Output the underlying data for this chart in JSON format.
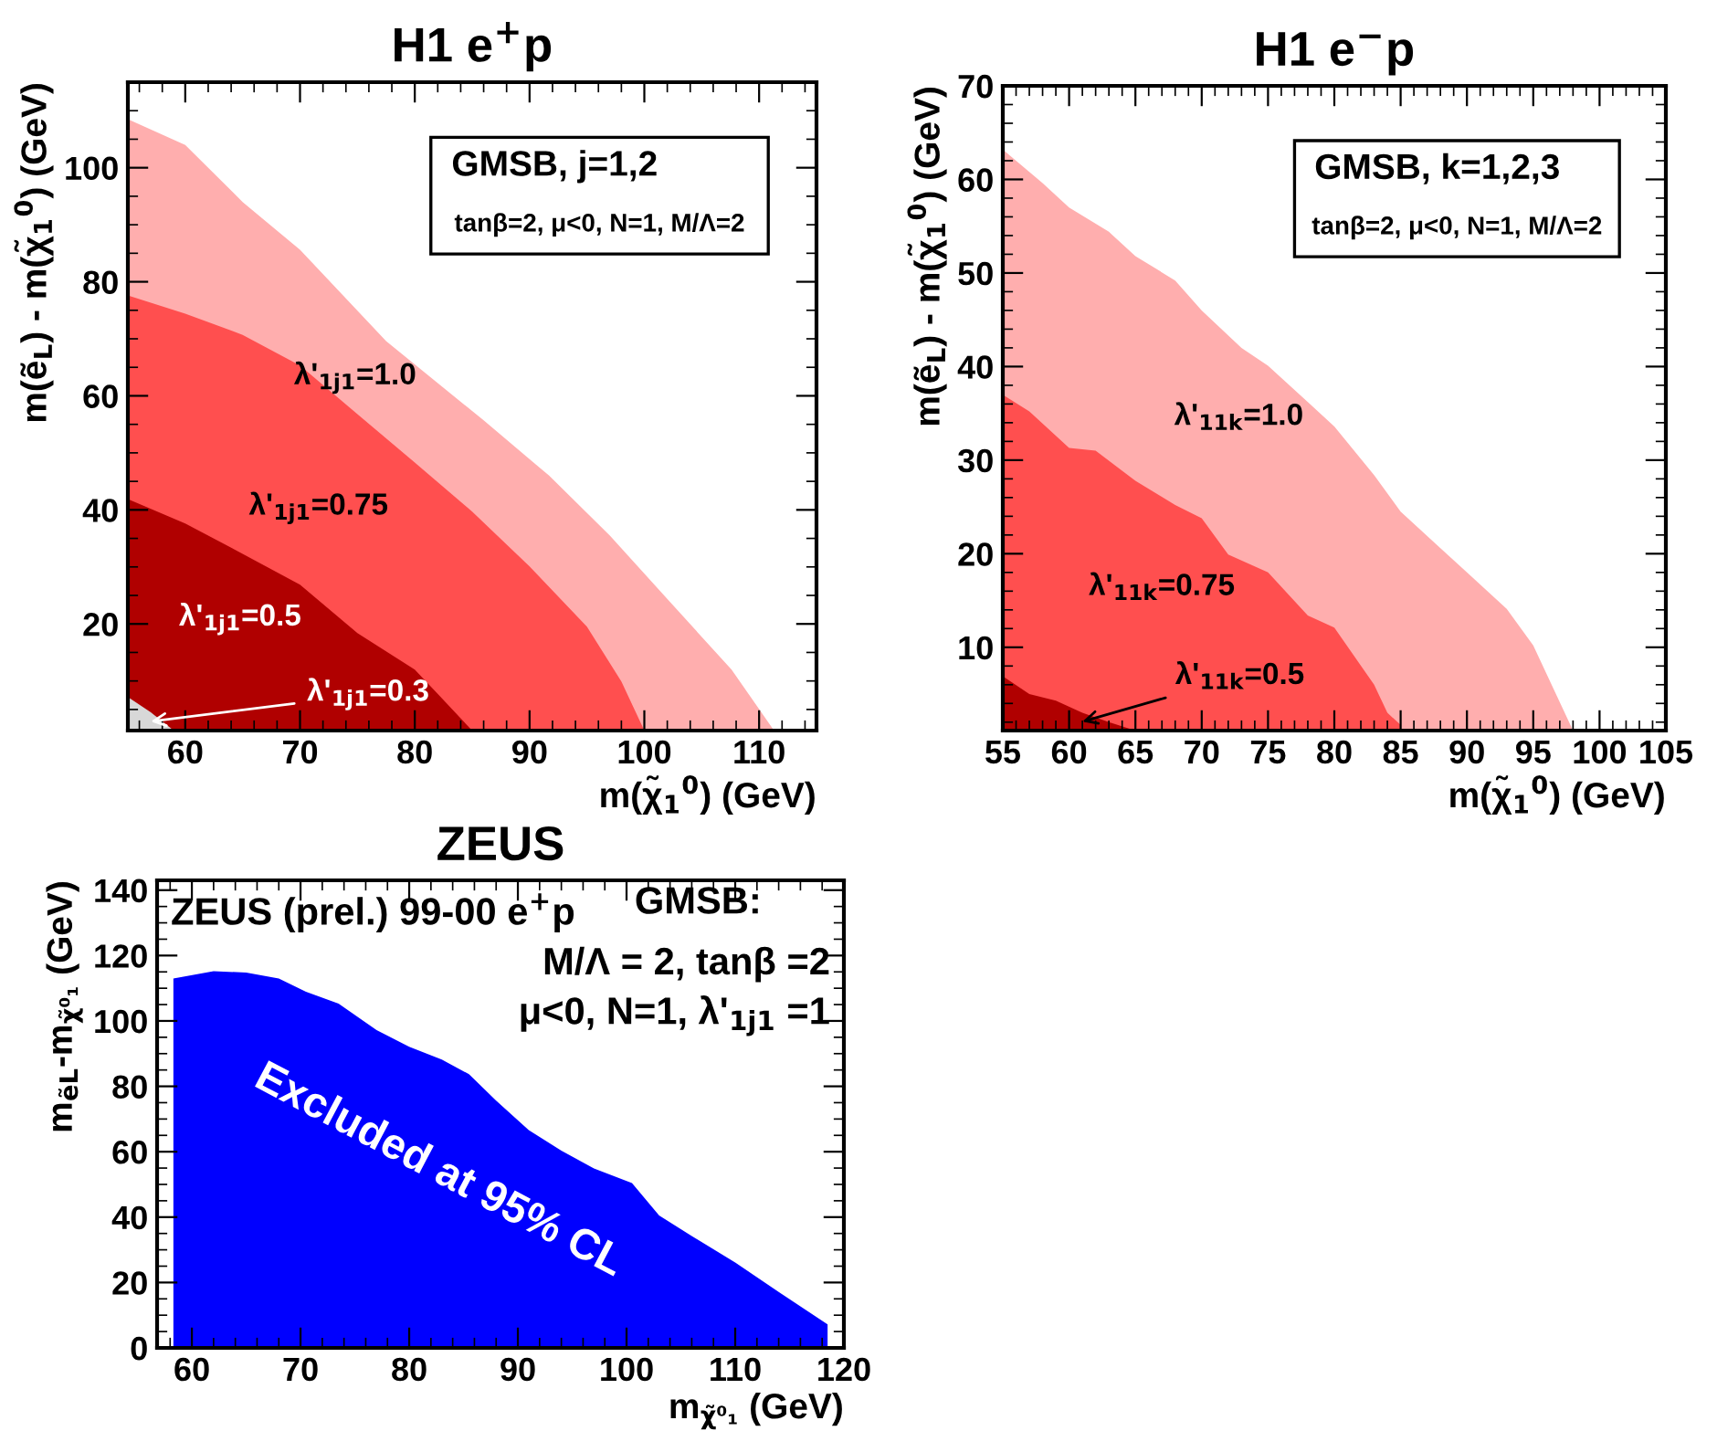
{
  "chart_data": [
    {
      "type": "area",
      "title": "H1 e$^{+}$p",
      "xlabel": "m(χ̃$_{1}$$^{0}$) (GeV)",
      "ylabel": "m(ẽ$_{L}$) - m(χ̃$_{1}$$^{0}$) (GeV)",
      "xlim": [
        55,
        115
      ],
      "ylim": [
        1.3,
        115
      ],
      "xticks": [
        60,
        70,
        80,
        90,
        100,
        110
      ],
      "yticks": [
        20,
        40,
        60,
        80,
        100
      ],
      "grid": false,
      "series": [
        {
          "name": "λ'$_{1j1}$=1.0",
          "color": "#ffaeae",
          "x": [
            55,
            60,
            65,
            70,
            77.5,
            86,
            91.7,
            97,
            102.3,
            107.6,
            111.3
          ],
          "values": [
            108.5,
            104,
            94,
            85.6,
            69.6,
            55.7,
            46,
            35.5,
            23.7,
            12,
            1.3
          ]
        },
        {
          "name": "λ'$_{1j1}$=0.75",
          "color": "#ff4f4f",
          "x": [
            55,
            60,
            65,
            70,
            75,
            80,
            85,
            90,
            95,
            98,
            100
          ],
          "values": [
            77.6,
            74.4,
            70.7,
            65.3,
            56.8,
            48.3,
            39.7,
            30.1,
            19.5,
            9.9,
            1.3
          ]
        },
        {
          "name": "λ'$_{1j1}$=0.5",
          "color": "#b00000",
          "x": [
            55,
            60,
            65,
            70,
            75,
            80,
            83,
            85
          ],
          "values": [
            41.9,
            37.6,
            32.3,
            26.9,
            18.4,
            12,
            5.6,
            1.3
          ]
        },
        {
          "name": "λ'$_{1j1}$=0.3",
          "color": "#d8d8d8",
          "x": [
            55,
            57,
            59
          ],
          "values": [
            7.2,
            4.5,
            1.3
          ]
        }
      ],
      "annotations": [
        "GMSB, j=1,2",
        "tanβ=2, μ<0, N=1, M/Λ=2"
      ]
    },
    {
      "type": "area",
      "title": "H1 e$^{−}$p",
      "xlabel": "m(χ̃$_{1}$$^{0}$) (GeV)",
      "ylabel": "m(ẽ$_{L}$) - m(χ̃$_{1}$$^{0}$) (GeV)",
      "xlim": [
        55,
        105
      ],
      "ylim": [
        1.1,
        70
      ],
      "xticks": [
        55,
        60,
        65,
        70,
        75,
        80,
        85,
        90,
        95,
        100,
        105
      ],
      "yticks": [
        10,
        20,
        30,
        40,
        50,
        60,
        70
      ],
      "grid": false,
      "series": [
        {
          "name": "λ'$_{11k}$=1.0",
          "color": "#ffaeae",
          "x": [
            55,
            58,
            60,
            63,
            65,
            68,
            70,
            73,
            75,
            78,
            80,
            83,
            85,
            88,
            90,
            93,
            95,
            98
          ],
          "values": [
            63.2,
            59.6,
            57,
            54.4,
            51.8,
            49.2,
            46,
            42,
            40.1,
            36.2,
            33.6,
            28.4,
            24.5,
            20.6,
            18,
            14.1,
            10.2,
            1.1
          ]
        },
        {
          "name": "λ'$_{11k}$=0.75",
          "color": "#ff4f4f",
          "x": [
            55,
            57,
            60,
            62,
            65,
            68,
            70,
            72,
            75,
            78,
            80,
            83,
            84,
            85
          ],
          "values": [
            37,
            35.2,
            31.3,
            31,
            27.8,
            25.2,
            23.8,
            19.9,
            18,
            13.4,
            12.1,
            6,
            3,
            1.7
          ]
        },
        {
          "name": "λ'$_{11k}$=0.5",
          "color": "#b00000",
          "x": [
            55,
            57,
            59,
            61,
            63,
            65
          ],
          "values": [
            6.9,
            5,
            4.3,
            3,
            2,
            1.1
          ]
        }
      ],
      "annotations": [
        "GMSB, k=1,2,3",
        "tanβ=2, μ<0, N=1, M/Λ=2"
      ]
    },
    {
      "type": "area",
      "title": "ZEUS",
      "xlabel": "m$_{χ̃⁰₁}$ (GeV)",
      "ylabel": "m$_{ẽL}$-m$_{χ̃⁰₁}$ (GeV)",
      "xlim": [
        56.8,
        120
      ],
      "ylim": [
        0,
        143
      ],
      "xticks": [
        60,
        70,
        80,
        90,
        100,
        110,
        120
      ],
      "yticks": [
        0,
        20,
        40,
        60,
        80,
        100,
        120,
        140
      ],
      "grid": false,
      "series": [
        {
          "color": "#0000ff",
          "x": [
            58.3,
            62,
            65,
            68,
            70.5,
            73.5,
            77,
            80,
            83,
            85.5,
            88,
            91,
            94,
            97,
            100.5,
            103,
            106,
            110,
            114,
            118.5
          ],
          "values": [
            113,
            115.2,
            114.8,
            113,
            108.9,
            105.3,
            97.2,
            92.1,
            88.2,
            83.7,
            75.6,
            66.6,
            60.3,
            54.9,
            50.4,
            40.5,
            34.2,
            26.1,
            17.1,
            7.2
          ]
        }
      ],
      "annotations": [
        "ZEUS (prel.) 99-00 e$^{+}$p",
        "GMSB:",
        "M/Λ = 2, tanβ =2",
        "μ<0, N=1, λ'$_{1j1}$ =1",
        "Excluded at 95% CL"
      ]
    }
  ]
}
